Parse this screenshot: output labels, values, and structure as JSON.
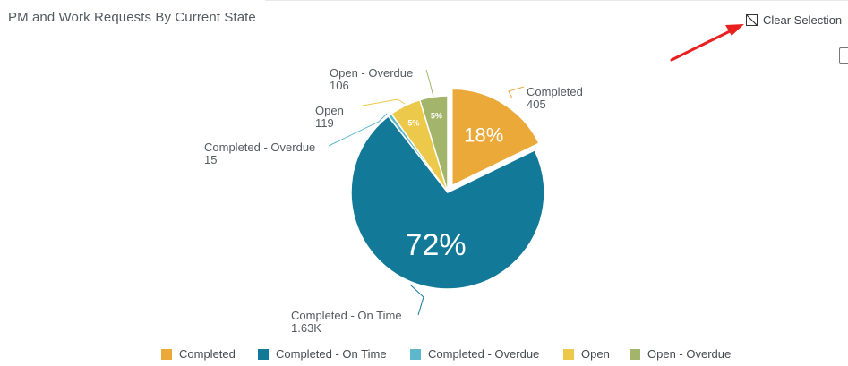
{
  "header": {
    "title": "PM and Work Requests By Current State",
    "clear_selection_label": "Clear Selection"
  },
  "icons": {
    "clear_selection": "clear-selection-icon"
  },
  "annotation": {
    "arrow_color": "#e8201f"
  },
  "chart_data": {
    "type": "pie",
    "title": "PM and Work Requests By Current State",
    "slices": [
      {
        "name": "Completed",
        "value": 405,
        "value_label": "405",
        "percent_label": "18%",
        "color": "#eba93a",
        "exploded": true
      },
      {
        "name": "Completed - On Time",
        "value": 1630,
        "value_label": "1.63K",
        "percent_label": "72%",
        "color": "#127998"
      },
      {
        "name": "Completed - Overdue",
        "value": 15,
        "value_label": "15",
        "percent_label": "",
        "color": "#5eb8cb"
      },
      {
        "name": "Open",
        "value": 119,
        "value_label": "119",
        "percent_label": "5%",
        "color": "#edc94b"
      },
      {
        "name": "Open - Overdue",
        "value": 106,
        "value_label": "106",
        "percent_label": "5%",
        "color": "#a3b56b"
      }
    ],
    "legend": {
      "placement": "bottom",
      "items": [
        "Completed",
        "Completed - On Time",
        "Completed - Overdue",
        "Open",
        "Open - Overdue"
      ]
    }
  }
}
